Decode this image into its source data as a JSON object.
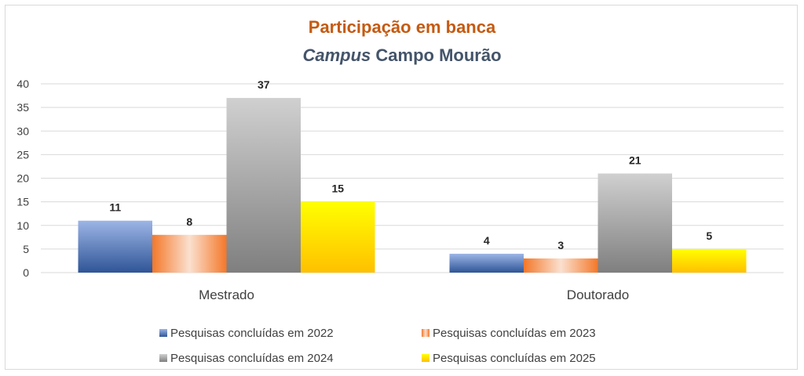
{
  "chart_data": {
    "type": "bar",
    "title": "Participação em banca",
    "subtitle_italic": "Campus",
    "subtitle_rest": " Campo Mourão",
    "categories": [
      "Mestrado",
      "Doutorado"
    ],
    "ylim": [
      0,
      40
    ],
    "yticks": [
      0,
      5,
      10,
      15,
      20,
      25,
      30,
      35,
      40
    ],
    "grid": true,
    "legend_position": "bottom",
    "series": [
      {
        "name": "Pesquisas concluídas em 2022",
        "values": [
          11,
          4
        ],
        "color": "#4472C4"
      },
      {
        "name": "Pesquisas concluídas em 2023",
        "values": [
          8,
          3
        ],
        "color": "#F4B183"
      },
      {
        "name": "Pesquisas concluídas em 2024",
        "values": [
          37,
          21
        ],
        "color": "#A5A5A5"
      },
      {
        "name": "Pesquisas concluídas em 2025",
        "values": [
          15,
          5
        ],
        "color": "#FFD700"
      }
    ]
  }
}
